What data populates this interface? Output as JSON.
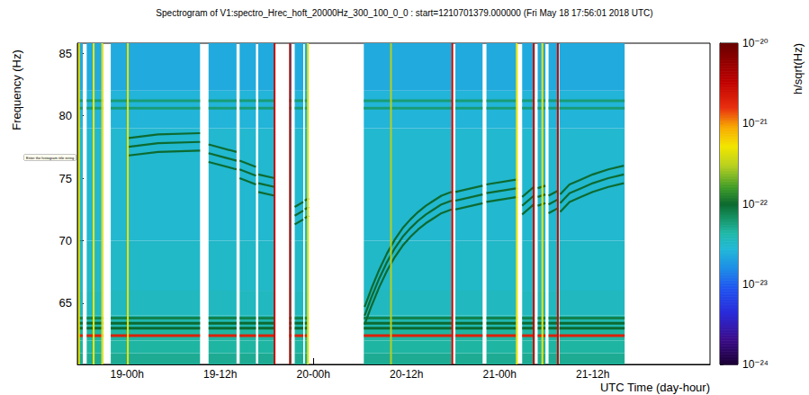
{
  "chart_data": {
    "type": "heatmap",
    "title": "Spectrogram of V1:spectro_Hrec_hoft_20000Hz_300_100_0_0 : start=1210701379.000000 (Fri May 18 17:56:01 2018 UTC)",
    "xlabel": "UTC Time (day-hour)",
    "ylabel": "Frequency (Hz)",
    "annotations": [
      "Enter the histogram title string"
    ],
    "grid": false,
    "xlim": [
      17.6,
      99.1
    ],
    "xticks": [
      {
        "value": 24,
        "label": "19-00h"
      },
      {
        "value": 36,
        "label": "19-12h"
      },
      {
        "value": 48,
        "label": "20-00h"
      },
      {
        "value": 60,
        "label": "20-12h"
      },
      {
        "value": 72,
        "label": "21-00h"
      },
      {
        "value": 84,
        "label": "21-12h"
      }
    ],
    "ylim": [
      60.1,
      85.8
    ],
    "yticks": [
      65,
      70,
      75,
      80,
      85
    ],
    "colorbar": {
      "label": "h/sqrt(Hz)",
      "range": [
        1e-24,
        1e-20
      ],
      "ticks": [
        {
          "value": 1e-24,
          "label": "10⁻²⁴"
        },
        {
          "value": 1e-23,
          "label": "10⁻²³"
        },
        {
          "value": 1e-22,
          "label": "10⁻²²"
        },
        {
          "value": 1e-21,
          "label": "10⁻²¹"
        },
        {
          "value": 1e-20,
          "label": "10⁻²⁰"
        }
      ]
    },
    "segments": [
      [
        17.8,
        18.3
      ],
      [
        18.8,
        19.6
      ],
      [
        19.7,
        20.9
      ],
      [
        21.9,
        33.4
      ],
      [
        34.5,
        38.1
      ],
      [
        38.5,
        40.6
      ],
      [
        40.9,
        43.0
      ],
      [
        44.9,
        45.2
      ],
      [
        45.6,
        46.7
      ],
      [
        46.9,
        47.4
      ],
      [
        54.5,
        65.8
      ],
      [
        66.3,
        69.8
      ],
      [
        70.3,
        74.3
      ],
      [
        74.9,
        76.4
      ],
      [
        76.9,
        77.9
      ],
      [
        78.3,
        79.5
      ],
      [
        79.7,
        88.1
      ]
    ],
    "bands": {
      "edges": [
        60.1,
        61.0,
        62.0,
        63.0,
        64.0,
        66.0,
        70.0,
        79.0,
        82.0,
        85.8
      ],
      "levels": [
        5e-23,
        4.5e-23,
        4.5e-23,
        4e-23,
        3.5e-23,
        3.2e-23,
        3e-23,
        2.6e-23,
        2.3e-23
      ]
    },
    "hlines": [
      {
        "freq": 62.4,
        "level": 2e-21
      },
      {
        "freq": 63.0,
        "level": 1e-22
      },
      {
        "freq": 63.4,
        "level": 1e-22
      },
      {
        "freq": 63.8,
        "level": 8e-23
      },
      {
        "freq": 80.6,
        "level": 6e-23
      },
      {
        "freq": 81.2,
        "level": 6e-23
      }
    ],
    "tracks": {
      "level": 1e-22,
      "lines": [
        [
          [
            24.0,
            76.8
          ],
          [
            28.0,
            77.1
          ],
          [
            33.4,
            77.2
          ]
        ],
        [
          [
            24.0,
            77.5
          ],
          [
            28.0,
            77.8
          ],
          [
            33.4,
            77.9
          ]
        ],
        [
          [
            24.0,
            78.2
          ],
          [
            28.0,
            78.5
          ],
          [
            33.4,
            78.6
          ]
        ],
        [
          [
            34.5,
            76.3
          ],
          [
            38.1,
            75.7
          ]
        ],
        [
          [
            34.5,
            77.0
          ],
          [
            38.1,
            76.4
          ]
        ],
        [
          [
            34.5,
            77.7
          ],
          [
            38.1,
            77.1
          ]
        ],
        [
          [
            38.5,
            75.0
          ],
          [
            40.6,
            74.5
          ]
        ],
        [
          [
            38.5,
            75.7
          ],
          [
            40.6,
            75.2
          ]
        ],
        [
          [
            38.5,
            76.4
          ],
          [
            40.6,
            75.9
          ]
        ],
        [
          [
            40.9,
            73.9
          ],
          [
            43.0,
            73.6
          ]
        ],
        [
          [
            40.9,
            74.6
          ],
          [
            43.0,
            74.3
          ]
        ],
        [
          [
            40.9,
            75.3
          ],
          [
            43.0,
            75.0
          ]
        ],
        [
          [
            45.6,
            71.3
          ],
          [
            46.7,
            71.7
          ]
        ],
        [
          [
            45.6,
            72.0
          ],
          [
            46.7,
            72.4
          ]
        ],
        [
          [
            45.6,
            72.7
          ],
          [
            46.7,
            73.1
          ]
        ],
        [
          [
            46.9,
            71.8
          ],
          [
            47.4,
            72.0
          ]
        ],
        [
          [
            46.9,
            72.5
          ],
          [
            47.4,
            72.7
          ]
        ],
        [
          [
            46.9,
            73.2
          ],
          [
            47.4,
            73.4
          ]
        ],
        [
          [
            54.6,
            63.3
          ],
          [
            55.5,
            64.8
          ],
          [
            56.5,
            66.3
          ],
          [
            57.5,
            67.6
          ],
          [
            58.5,
            68.7
          ],
          [
            59.5,
            69.6
          ],
          [
            60.5,
            70.3
          ],
          [
            61.5,
            70.9
          ],
          [
            62.5,
            71.4
          ],
          [
            63.5,
            71.8
          ],
          [
            64.5,
            72.2
          ],
          [
            65.8,
            72.5
          ]
        ],
        [
          [
            54.6,
            64.0
          ],
          [
            55.5,
            65.5
          ],
          [
            56.5,
            67.0
          ],
          [
            57.5,
            68.3
          ],
          [
            58.5,
            69.4
          ],
          [
            59.5,
            70.3
          ],
          [
            60.5,
            71.0
          ],
          [
            61.5,
            71.6
          ],
          [
            62.5,
            72.1
          ],
          [
            63.5,
            72.5
          ],
          [
            64.5,
            72.9
          ],
          [
            65.8,
            73.2
          ]
        ],
        [
          [
            54.6,
            64.7
          ],
          [
            55.5,
            66.2
          ],
          [
            56.5,
            67.7
          ],
          [
            57.5,
            69.0
          ],
          [
            58.5,
            70.1
          ],
          [
            59.5,
            71.0
          ],
          [
            60.5,
            71.7
          ],
          [
            61.5,
            72.3
          ],
          [
            62.5,
            72.8
          ],
          [
            63.5,
            73.2
          ],
          [
            64.5,
            73.6
          ],
          [
            65.8,
            73.9
          ]
        ],
        [
          [
            66.3,
            72.5
          ],
          [
            69.8,
            73.0
          ]
        ],
        [
          [
            66.3,
            73.2
          ],
          [
            69.8,
            73.7
          ]
        ],
        [
          [
            66.3,
            73.9
          ],
          [
            69.8,
            74.4
          ]
        ],
        [
          [
            70.3,
            73.1
          ],
          [
            74.3,
            73.5
          ]
        ],
        [
          [
            70.3,
            73.8
          ],
          [
            74.3,
            74.2
          ]
        ],
        [
          [
            70.3,
            74.5
          ],
          [
            74.3,
            74.9
          ]
        ],
        [
          [
            74.9,
            72.1
          ],
          [
            76.4,
            72.9
          ]
        ],
        [
          [
            74.9,
            72.8
          ],
          [
            76.4,
            73.6
          ]
        ],
        [
          [
            74.9,
            73.5
          ],
          [
            76.4,
            74.3
          ]
        ],
        [
          [
            76.9,
            72.8
          ],
          [
            77.9,
            73.0
          ]
        ],
        [
          [
            76.9,
            73.5
          ],
          [
            77.9,
            73.7
          ]
        ],
        [
          [
            76.9,
            74.2
          ],
          [
            77.9,
            74.4
          ]
        ],
        [
          [
            78.3,
            72.2
          ],
          [
            79.5,
            72.6
          ]
        ],
        [
          [
            78.3,
            72.9
          ],
          [
            79.5,
            73.3
          ]
        ],
        [
          [
            78.3,
            73.6
          ],
          [
            79.5,
            74.0
          ]
        ],
        [
          [
            79.8,
            72.3
          ],
          [
            81.0,
            73.1
          ],
          [
            82.5,
            73.5
          ],
          [
            84.0,
            73.9
          ],
          [
            86.0,
            74.3
          ],
          [
            88.0,
            74.6
          ]
        ],
        [
          [
            79.8,
            73.0
          ],
          [
            81.0,
            73.8
          ],
          [
            82.5,
            74.2
          ],
          [
            84.0,
            74.6
          ],
          [
            86.0,
            75.0
          ],
          [
            88.0,
            75.3
          ]
        ],
        [
          [
            79.8,
            73.7
          ],
          [
            81.0,
            74.5
          ],
          [
            82.5,
            74.9
          ],
          [
            84.0,
            75.3
          ],
          [
            86.0,
            75.7
          ],
          [
            88.0,
            76.0
          ]
        ]
      ]
    },
    "transients": [
      {
        "x": 17.8,
        "level": 5e-22
      },
      {
        "x": 19.7,
        "level": 5e-22
      },
      {
        "x": 20.8,
        "level": 5e-22
      },
      {
        "x": 24.1,
        "level": 5e-22
      },
      {
        "x": 43.0,
        "level": 3e-21
      },
      {
        "x": 45.0,
        "level": 3e-21
      },
      {
        "x": 47.3,
        "level": 5e-22
      },
      {
        "x": 58.0,
        "level": 3e-22
      },
      {
        "x": 65.9,
        "level": 3e-21
      },
      {
        "x": 74.2,
        "level": 5e-22
      },
      {
        "x": 76.4,
        "level": 3e-21
      },
      {
        "x": 77.5,
        "level": 5e-22
      },
      {
        "x": 79.5,
        "level": 3e-21
      }
    ]
  }
}
